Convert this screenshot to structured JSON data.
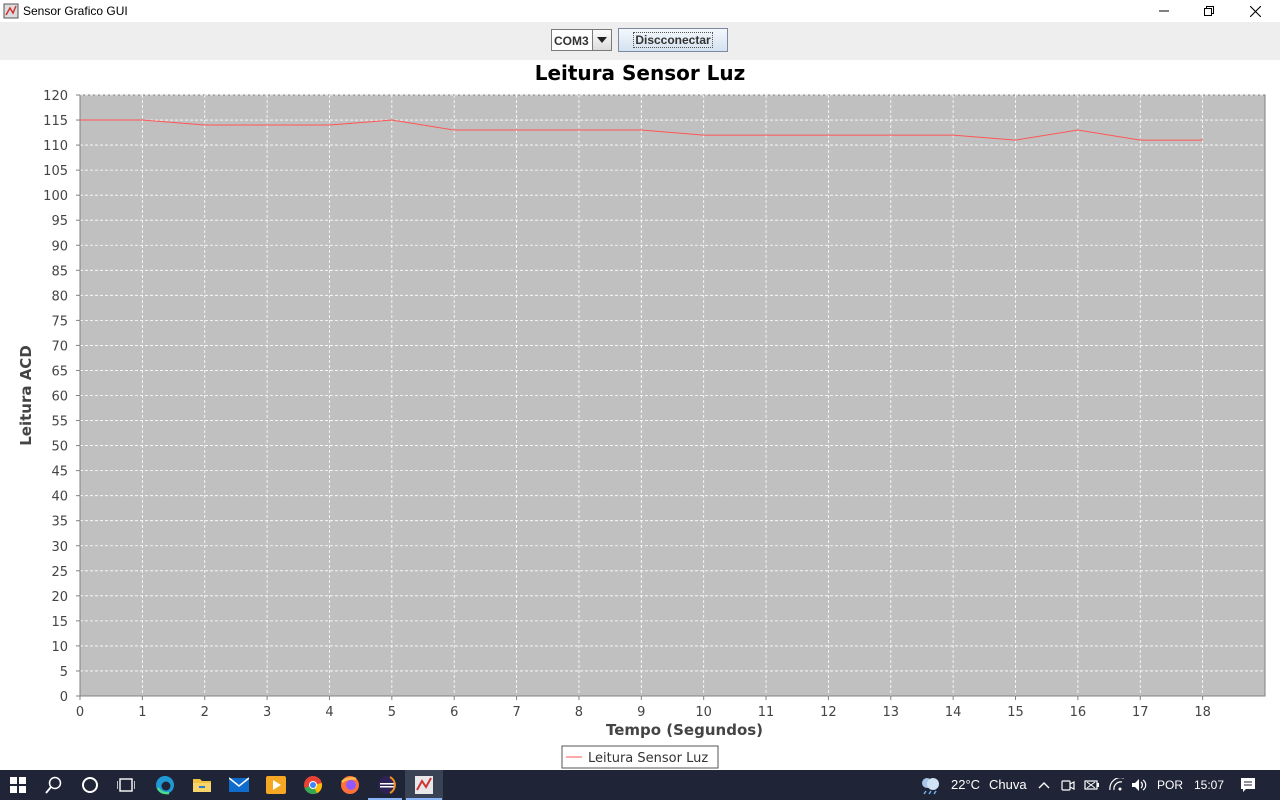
{
  "window": {
    "title": "Sensor Grafico GUI",
    "controls": [
      "minimize",
      "maximize",
      "close"
    ]
  },
  "toolbar": {
    "port_select": {
      "value": "COM3"
    },
    "connect_button": {
      "label": "Discconectar"
    }
  },
  "chart_data": {
    "type": "line",
    "title": "Leitura Sensor Luz",
    "xlabel": "Tempo (Segundos)",
    "ylabel": "Leitura ACD",
    "xlim": [
      0,
      19
    ],
    "ylim": [
      0,
      120
    ],
    "x_ticks": [
      0,
      1,
      2,
      3,
      4,
      5,
      6,
      7,
      8,
      9,
      10,
      11,
      12,
      13,
      14,
      15,
      16,
      17,
      18
    ],
    "y_ticks": [
      0,
      5,
      10,
      15,
      20,
      25,
      30,
      35,
      40,
      45,
      50,
      55,
      60,
      65,
      70,
      75,
      80,
      85,
      90,
      95,
      100,
      105,
      110,
      115,
      120
    ],
    "grid": true,
    "background": "#c0c0c0",
    "legend_position": "bottom-center",
    "series": [
      {
        "name": "Leitura Sensor Luz",
        "color": "#ff5555",
        "x": [
          0,
          1,
          2,
          3,
          4,
          5,
          6,
          7,
          8,
          9,
          10,
          11,
          12,
          13,
          14,
          15,
          16,
          17,
          18
        ],
        "y": [
          115,
          115,
          114,
          114,
          114,
          115,
          113,
          113,
          113,
          113,
          112,
          112,
          112,
          112,
          112,
          111,
          113,
          111,
          111
        ]
      }
    ]
  },
  "taskbar": {
    "icons": [
      "windows-start-icon",
      "search-icon",
      "cortana-icon",
      "task-view-icon",
      "edge-icon",
      "file-explorer-icon",
      "mail-icon",
      "media-player-icon",
      "chrome-icon",
      "firefox-icon",
      "eclipse-icon",
      "java-app-icon"
    ],
    "weather": {
      "temperature": "22°C",
      "condition": "Chuva"
    },
    "language": "POR",
    "time": "15:07"
  }
}
